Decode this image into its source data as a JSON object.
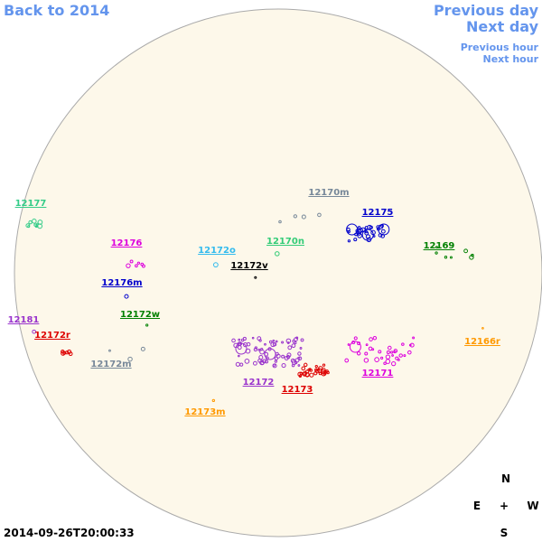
{
  "nav": {
    "back": "Back to 2014",
    "previous_day": "Previous day",
    "next_day": "Next day",
    "previous_hour": "Previous hour",
    "next_hour": "Next hour"
  },
  "regions": [
    {
      "label": "12170m",
      "color": "#778899"
    },
    {
      "label": "12175",
      "color": "#0000cc"
    },
    {
      "label": "12169",
      "color": "#008000"
    },
    {
      "label": "12177",
      "color": "#33cc88"
    },
    {
      "label": "12176",
      "color": "#dd00dd"
    },
    {
      "label": "12172o",
      "color": "#33bbee"
    },
    {
      "label": "12170n",
      "color": "#33cc77"
    },
    {
      "label": "12172v",
      "color": "#000000"
    },
    {
      "label": "12176m",
      "color": "#0000cc"
    },
    {
      "label": "12172w",
      "color": "#008000"
    },
    {
      "label": "12181",
      "color": "#9933cc"
    },
    {
      "label": "12172r",
      "color": "#dd0000"
    },
    {
      "label": "12172m",
      "color": "#778899"
    },
    {
      "label": "12166r",
      "color": "#ff9900"
    },
    {
      "label": "12172",
      "color": "#9933cc"
    },
    {
      "label": "12173",
      "color": "#dd0000"
    },
    {
      "label": "12171",
      "color": "#dd00dd"
    },
    {
      "label": "12173m",
      "color": "#ff9900"
    }
  ],
  "compass": {
    "north": "N",
    "east": "E",
    "center": "+",
    "west": "W",
    "south": "S"
  },
  "timestamp": "2014-09-26T20:00:33"
}
